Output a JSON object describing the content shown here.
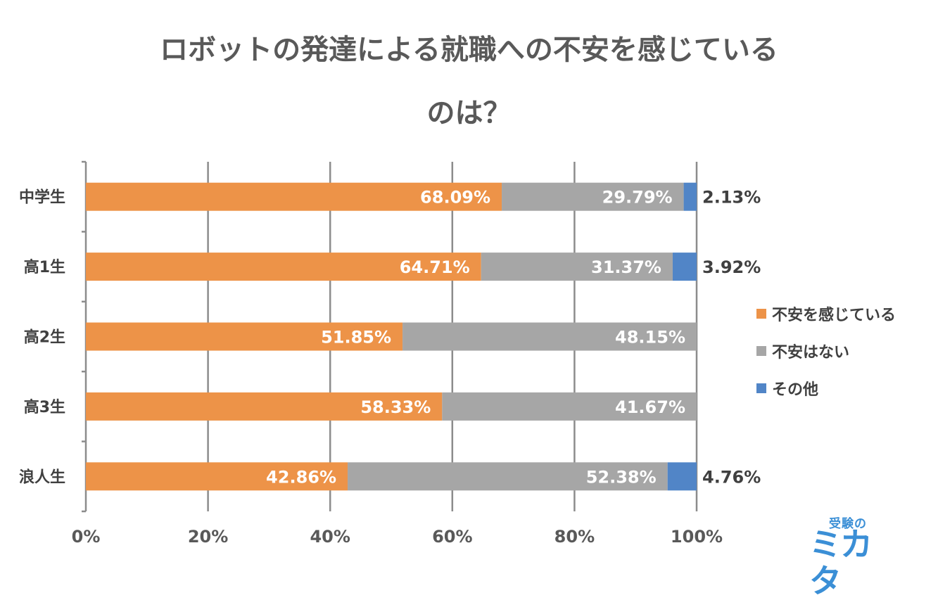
{
  "chart_data": {
    "type": "bar",
    "orientation": "horizontal",
    "stacked": true,
    "title": "ロボットの発達による就職への不安を感じているのは？",
    "title_lines": [
      "ロボットの発達による就職への不安を感じている",
      "のは？"
    ],
    "categories": [
      "中学生",
      "高1生",
      "高2生",
      "高3生",
      "浪人生"
    ],
    "series": [
      {
        "name": "不安を感じている",
        "color": "#ED9348",
        "values": [
          68.09,
          64.71,
          51.85,
          58.33,
          42.86
        ],
        "labels": [
          "68.09%",
          "64.71%",
          "51.85%",
          "58.33%",
          "42.86%"
        ]
      },
      {
        "name": "不安はない",
        "color": "#A6A6A6",
        "values": [
          29.79,
          31.37,
          48.15,
          41.67,
          52.38
        ],
        "labels": [
          "29.79%",
          "31.37%",
          "48.15%",
          "41.67%",
          "52.38%"
        ]
      },
      {
        "name": "その他",
        "color": "#5185C7",
        "values": [
          2.13,
          3.92,
          0,
          0,
          4.76
        ],
        "labels": [
          "2.13%",
          "3.92%",
          "",
          "",
          "4.76%"
        ]
      }
    ],
    "xlim": [
      0,
      100
    ],
    "xticks": [
      "0%",
      "20%",
      "40%",
      "60%",
      "80%",
      "100%"
    ],
    "xtick_values": [
      0,
      20,
      40,
      60,
      80,
      100
    ],
    "grid": true,
    "legend_position": "right"
  },
  "logo": {
    "top": "受験の",
    "bottom": "ミカタ"
  }
}
